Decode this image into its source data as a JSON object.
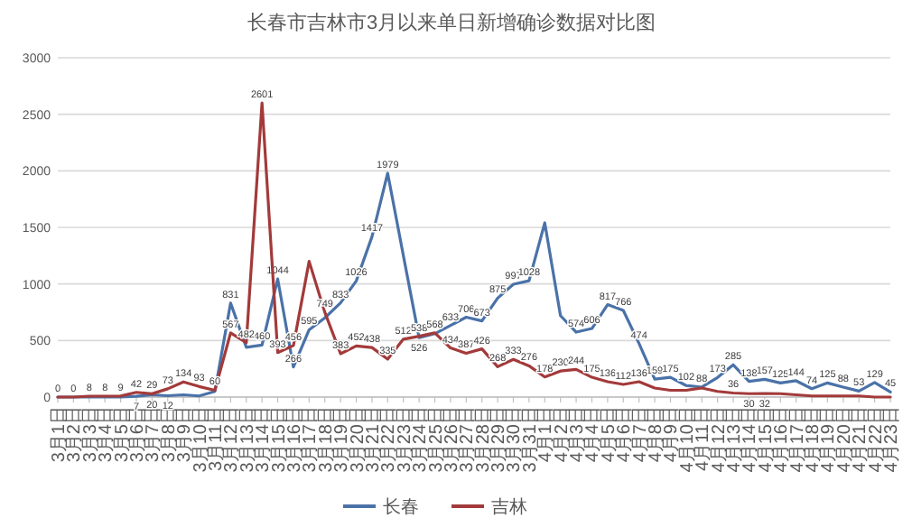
{
  "chart_data": {
    "type": "line",
    "title": "长春市吉林市3月以来单日新增确诊数据对比图",
    "categories": [
      "3月1日",
      "3月2日",
      "3月3日",
      "3月4日",
      "3月5日",
      "3月6日",
      "3月7日",
      "3月8日",
      "3月9日",
      "3月10日",
      "3月11日",
      "3月12日",
      "3月13日",
      "3月14日",
      "3月15日",
      "3月16日",
      "3月17日",
      "3月18日",
      "3月19日",
      "3月20日",
      "3月21日",
      "3月22日",
      "3月23日",
      "3月24日",
      "3月25日",
      "3月26日",
      "3月27日",
      "3月28日",
      "3月29日",
      "3月30日",
      "3月31日",
      "4月1日",
      "4月2日",
      "4月3日",
      "4月4日",
      "4月5日",
      "4月6日",
      "4月7日",
      "4月8日",
      "4月9日",
      "4月10日",
      "4月11日",
      "4月12日",
      "4月13日",
      "4月14日",
      "4月15日",
      "4月16日",
      "4月17日",
      "4月18日",
      "4月19日",
      "4月20日",
      "4月21日",
      "4月22日",
      "4月23日"
    ],
    "ylim": [
      0,
      3000
    ],
    "yticks": [
      0,
      500,
      1000,
      1500,
      2000,
      2500,
      3000
    ],
    "grid": "y",
    "legend": "bottom",
    "series": [
      {
        "name": "长春",
        "color": "#4a72a8",
        "values": [
          0,
          0,
          0,
          0,
          0,
          7,
          20,
          12,
          20,
          10,
          50,
          831,
          440,
          460,
          1044,
          266,
          595,
          700,
          833,
          1026,
          1417,
          1979,
          1250,
          526,
          560,
          633,
          706,
          673,
          875,
          997,
          1028,
          1540,
          720,
          574,
          606,
          817,
          766,
          474,
          159,
          175,
          102,
          88,
          173,
          285,
          138,
          157,
          125,
          144,
          74,
          125,
          88,
          53,
          129,
          45
        ],
        "value_labels": [
          null,
          null,
          null,
          null,
          null,
          "7",
          "20",
          "12",
          null,
          null,
          null,
          "831",
          null,
          "460",
          "1044",
          "266",
          "595",
          null,
          "833",
          "1026",
          "1417",
          "1979",
          null,
          "526",
          null,
          "633",
          "706",
          "673",
          "875",
          "997",
          "1028",
          null,
          null,
          "574",
          "606",
          "817",
          "766",
          "474",
          "159",
          "175",
          "102",
          "88",
          "173",
          "285",
          "138",
          "157",
          "125",
          "144",
          "74",
          "125",
          "88",
          "53",
          "129",
          "45"
        ]
      },
      {
        "name": "吉林",
        "color": "#a33a3a",
        "values": [
          0,
          0,
          8,
          8,
          9,
          42,
          29,
          73,
          134,
          93,
          60,
          567,
          482,
          2601,
          393,
          456,
          1200,
          749,
          383,
          452,
          438,
          335,
          512,
          538,
          568,
          434,
          387,
          426,
          268,
          333,
          276,
          178,
          230,
          244,
          175,
          136,
          112,
          136,
          80,
          60,
          60,
          80,
          50,
          36,
          30,
          32,
          30,
          20,
          10,
          10,
          10,
          10,
          0,
          0
        ],
        "value_labels": [
          "0",
          "0",
          "8",
          "8",
          "9",
          "42",
          "29",
          "73",
          "134",
          "93",
          "60",
          "567",
          "482",
          "2601",
          "393",
          "456",
          null,
          "749",
          "383",
          "452",
          "438",
          "335",
          "512",
          "538",
          "568",
          "434",
          "387",
          "426",
          "268",
          "333",
          "276",
          "178",
          "230",
          "244",
          "175",
          "136",
          "112",
          "136",
          null,
          null,
          null,
          null,
          null,
          "36",
          "30",
          "32",
          null,
          null,
          null,
          null,
          null,
          null,
          null,
          null
        ]
      }
    ]
  }
}
